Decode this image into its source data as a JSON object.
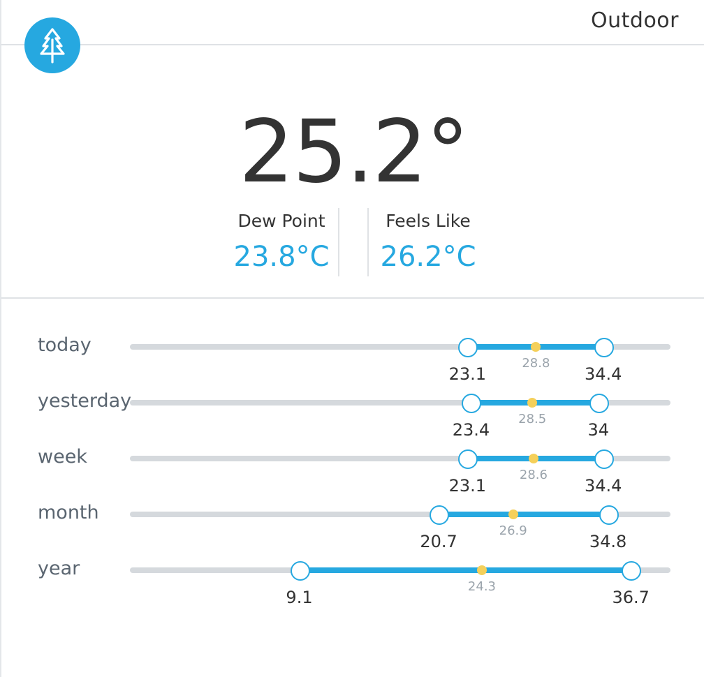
{
  "widget": {
    "title": "Outdoor",
    "icon": "tree-icon",
    "accent_color": "#26a8e0",
    "avg_color": "#f5d05a"
  },
  "current": {
    "temperature": "25.2°",
    "dew_point": {
      "label": "Dew Point",
      "value": "23.8°C"
    },
    "feels_like": {
      "label": "Feels Like",
      "value": "26.2°C"
    }
  },
  "ranges": [
    {
      "label": "today",
      "min": 23.1,
      "avg": 28.8,
      "max": 34.4
    },
    {
      "label": "yesterday",
      "min": 23.4,
      "avg": 28.5,
      "max": 34
    },
    {
      "label": "week",
      "min": 23.1,
      "avg": 28.6,
      "max": 34.4
    },
    {
      "label": "month",
      "min": 20.7,
      "avg": 26.9,
      "max": 34.8
    },
    {
      "label": "year",
      "min": 9.1,
      "avg": 24.3,
      "max": 36.7
    }
  ]
}
